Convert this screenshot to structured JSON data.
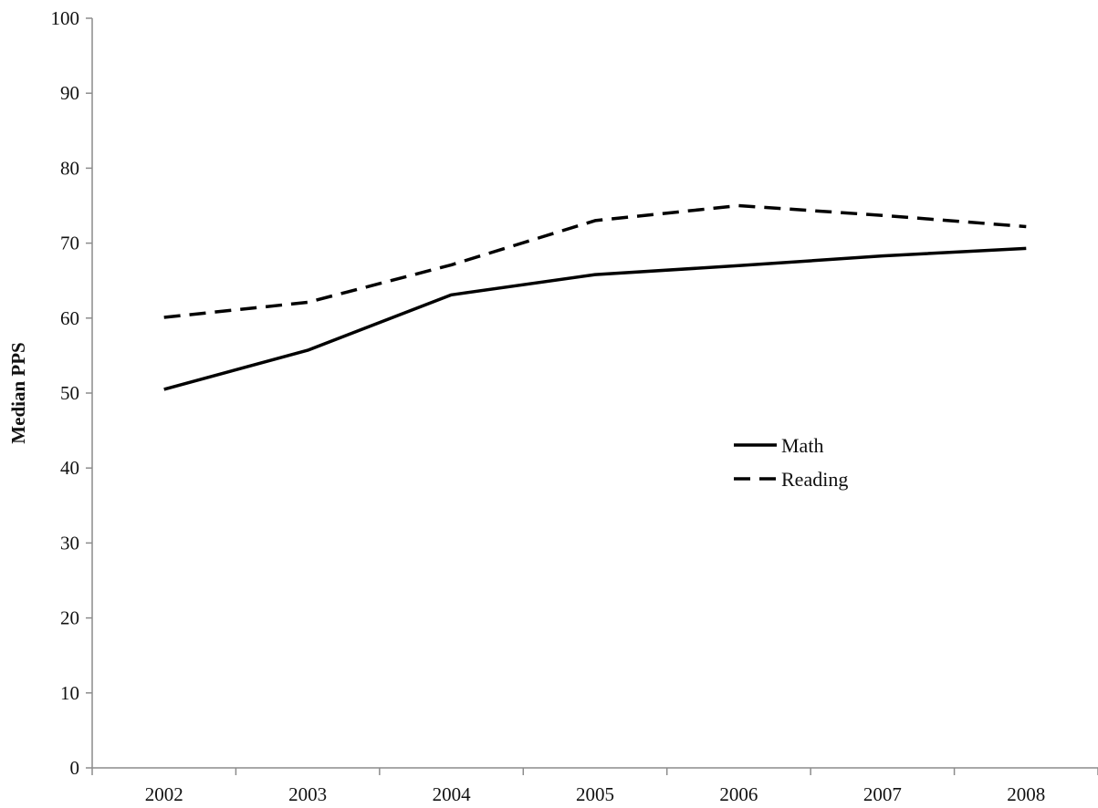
{
  "chart_data": {
    "type": "line",
    "title": "",
    "xlabel": "",
    "ylabel": "Median PPS",
    "categories": [
      "2002",
      "2003",
      "2004",
      "2005",
      "2006",
      "2007",
      "2008"
    ],
    "ylim": [
      0,
      100
    ],
    "yticks": [
      0,
      10,
      20,
      30,
      40,
      50,
      60,
      70,
      80,
      90,
      100
    ],
    "grid": false,
    "legend_position": "center-right",
    "series": [
      {
        "name": "Math",
        "style": "solid",
        "color": "#000000",
        "values": [
          50.5,
          55.7,
          63.1,
          65.8,
          67.0,
          68.3,
          69.3
        ]
      },
      {
        "name": "Reading",
        "style": "dashed",
        "color": "#000000",
        "values": [
          60.1,
          62.1,
          67.1,
          73.0,
          75.0,
          73.7,
          72.2
        ]
      }
    ]
  }
}
